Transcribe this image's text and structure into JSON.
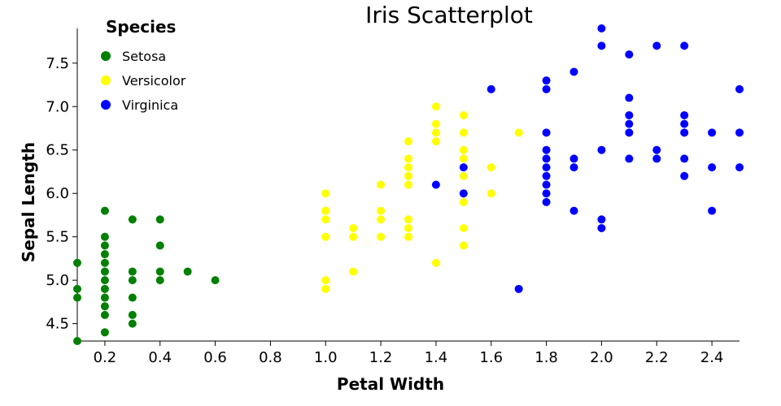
{
  "chart_data": {
    "type": "scatter",
    "title": "Iris Scatterplot",
    "xlabel": "Petal Width",
    "ylabel": "Sepal Length",
    "xlim": [
      0.1,
      2.5
    ],
    "ylim": [
      4.3,
      7.9
    ],
    "xticks": [
      "0.2",
      "0.4",
      "0.6",
      "0.8",
      "1.0",
      "1.2",
      "1.4",
      "1.6",
      "1.8",
      "2.0",
      "2.2",
      "2.4"
    ],
    "yticks": [
      "4.5",
      "5.0",
      "5.5",
      "6.0",
      "6.5",
      "7.0",
      "7.5"
    ],
    "grid": false,
    "legend": {
      "title": "Species",
      "placement": "top-left"
    },
    "series": [
      {
        "name": "Setosa",
        "color": "#008000",
        "points": [
          [
            0.1,
            5.2
          ],
          [
            0.1,
            4.9
          ],
          [
            0.1,
            4.8
          ],
          [
            0.1,
            4.3
          ],
          [
            0.2,
            5.8
          ],
          [
            0.2,
            5.5
          ],
          [
            0.2,
            5.4
          ],
          [
            0.2,
            5.3
          ],
          [
            0.2,
            5.2
          ],
          [
            0.2,
            5.1
          ],
          [
            0.2,
            5.0
          ],
          [
            0.2,
            4.9
          ],
          [
            0.2,
            4.8
          ],
          [
            0.2,
            4.7
          ],
          [
            0.2,
            4.6
          ],
          [
            0.2,
            4.4
          ],
          [
            0.3,
            5.7
          ],
          [
            0.3,
            5.1
          ],
          [
            0.3,
            5.0
          ],
          [
            0.3,
            4.8
          ],
          [
            0.3,
            4.6
          ],
          [
            0.3,
            4.5
          ],
          [
            0.4,
            5.7
          ],
          [
            0.4,
            5.4
          ],
          [
            0.4,
            5.1
          ],
          [
            0.4,
            5.0
          ],
          [
            0.5,
            5.1
          ],
          [
            0.6,
            5.0
          ]
        ]
      },
      {
        "name": "Versicolor",
        "color": "#ffff00",
        "points": [
          [
            1.0,
            6.0
          ],
          [
            1.0,
            5.8
          ],
          [
            1.0,
            5.7
          ],
          [
            1.0,
            5.5
          ],
          [
            1.0,
            5.0
          ],
          [
            1.0,
            4.9
          ],
          [
            1.1,
            5.6
          ],
          [
            1.1,
            5.5
          ],
          [
            1.1,
            5.1
          ],
          [
            1.2,
            6.1
          ],
          [
            1.2,
            5.8
          ],
          [
            1.2,
            5.7
          ],
          [
            1.2,
            5.5
          ],
          [
            1.3,
            6.6
          ],
          [
            1.3,
            6.4
          ],
          [
            1.3,
            6.3
          ],
          [
            1.3,
            6.2
          ],
          [
            1.3,
            6.1
          ],
          [
            1.3,
            5.7
          ],
          [
            1.3,
            5.6
          ],
          [
            1.3,
            5.5
          ],
          [
            1.4,
            7.0
          ],
          [
            1.4,
            6.8
          ],
          [
            1.4,
            6.7
          ],
          [
            1.4,
            6.6
          ],
          [
            1.4,
            5.2
          ],
          [
            1.5,
            6.9
          ],
          [
            1.5,
            6.7
          ],
          [
            1.5,
            6.5
          ],
          [
            1.5,
            6.4
          ],
          [
            1.5,
            6.2
          ],
          [
            1.5,
            5.9
          ],
          [
            1.5,
            5.6
          ],
          [
            1.5,
            5.4
          ],
          [
            1.6,
            6.3
          ],
          [
            1.6,
            6.0
          ],
          [
            1.7,
            6.7
          ]
        ]
      },
      {
        "name": "Virginica",
        "color": "#0000ff",
        "points": [
          [
            1.4,
            6.1
          ],
          [
            1.5,
            6.3
          ],
          [
            1.5,
            6.0
          ],
          [
            1.6,
            7.2
          ],
          [
            1.7,
            4.9
          ],
          [
            1.8,
            7.3
          ],
          [
            1.8,
            7.2
          ],
          [
            1.8,
            6.7
          ],
          [
            1.8,
            6.5
          ],
          [
            1.8,
            6.4
          ],
          [
            1.8,
            6.3
          ],
          [
            1.8,
            6.2
          ],
          [
            1.8,
            6.1
          ],
          [
            1.8,
            6.0
          ],
          [
            1.8,
            5.9
          ],
          [
            1.9,
            7.4
          ],
          [
            1.9,
            6.4
          ],
          [
            1.9,
            6.3
          ],
          [
            1.9,
            5.8
          ],
          [
            2.0,
            7.9
          ],
          [
            2.0,
            7.7
          ],
          [
            2.0,
            6.5
          ],
          [
            2.0,
            5.7
          ],
          [
            2.0,
            5.6
          ],
          [
            2.1,
            7.6
          ],
          [
            2.1,
            7.1
          ],
          [
            2.1,
            6.9
          ],
          [
            2.1,
            6.8
          ],
          [
            2.1,
            6.7
          ],
          [
            2.1,
            6.4
          ],
          [
            2.2,
            7.7
          ],
          [
            2.2,
            6.5
          ],
          [
            2.2,
            6.4
          ],
          [
            2.3,
            7.7
          ],
          [
            2.3,
            6.9
          ],
          [
            2.3,
            6.8
          ],
          [
            2.3,
            6.7
          ],
          [
            2.3,
            6.4
          ],
          [
            2.3,
            6.2
          ],
          [
            2.4,
            6.7
          ],
          [
            2.4,
            6.3
          ],
          [
            2.4,
            5.8
          ],
          [
            2.5,
            7.2
          ],
          [
            2.5,
            6.7
          ],
          [
            2.5,
            6.3
          ]
        ]
      }
    ]
  }
}
